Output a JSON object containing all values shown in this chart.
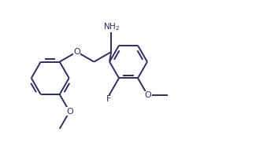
{
  "bg_color": "#ffffff",
  "line_color": "#2d2d6b",
  "line_width": 1.4,
  "font_size": 7.5,
  "fig_width": 3.53,
  "fig_height": 1.92,
  "dpi": 100,
  "xlim": [
    -2.5,
    2.8
  ],
  "ylim": [
    -1.3,
    1.3
  ]
}
